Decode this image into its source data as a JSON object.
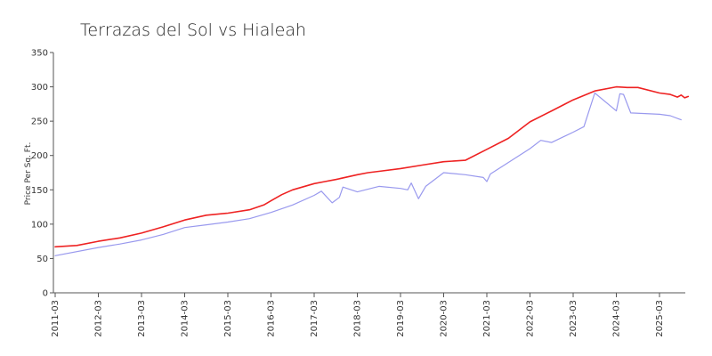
{
  "chart_data": {
    "type": "line",
    "title": "Terrazas del Sol vs Hialeah",
    "xlabel": "",
    "ylabel": "Price Per Sq. Ft.",
    "ylim": [
      0,
      350
    ],
    "yticks": [
      0,
      50,
      100,
      150,
      200,
      250,
      300,
      350
    ],
    "xticks": [
      "2011-03",
      "2012-03",
      "2013-03",
      "2014-03",
      "2015-03",
      "2016-03",
      "2017-03",
      "2018-03",
      "2019-03",
      "2020-03",
      "2021-03",
      "2022-03",
      "2023-03",
      "2024-03",
      "2025-03"
    ],
    "grid": false,
    "legend": "none",
    "series": [
      {
        "color": "#ee2222",
        "x": [
          "2011-03",
          "2011-09",
          "2012-03",
          "2012-09",
          "2013-03",
          "2013-09",
          "2014-03",
          "2014-09",
          "2015-03",
          "2015-09",
          "2016-01",
          "2016-03",
          "2016-06",
          "2016-09",
          "2017-03",
          "2017-06",
          "2017-09",
          "2018-03",
          "2018-06",
          "2018-09",
          "2019-03",
          "2019-09",
          "2020-03",
          "2020-09",
          "2021-03",
          "2021-09",
          "2022-03",
          "2022-09",
          "2023-03",
          "2023-09",
          "2024-03",
          "2024-06",
          "2024-09",
          "2025-03",
          "2025-06",
          "2025-08",
          "2025-09",
          "2025-10",
          "2025-11"
        ],
        "values": [
          67,
          69,
          75,
          80,
          87,
          96,
          106,
          113,
          116,
          121,
          128,
          134,
          143,
          150,
          159,
          162,
          165,
          172,
          175,
          177,
          181,
          186,
          191,
          193,
          209,
          225,
          249,
          265,
          281,
          294,
          300,
          299,
          299,
          291,
          289,
          285,
          288,
          284,
          286
        ]
      },
      {
        "color": "#9999ee",
        "x": [
          "2011-03",
          "2012-03",
          "2012-09",
          "2013-03",
          "2013-09",
          "2014-03",
          "2014-09",
          "2015-03",
          "2015-09",
          "2016-03",
          "2016-09",
          "2017-03",
          "2017-05",
          "2017-08",
          "2017-10",
          "2017-11",
          "2018-03",
          "2018-09",
          "2019-03",
          "2019-05",
          "2019-06",
          "2019-08",
          "2019-10",
          "2020-03",
          "2020-09",
          "2021-02",
          "2021-03",
          "2021-04",
          "2022-03",
          "2022-06",
          "2022-09",
          "2023-03",
          "2023-06",
          "2023-09",
          "2024-03",
          "2024-04",
          "2024-05",
          "2024-07",
          "2025-03",
          "2025-06",
          "2025-09"
        ],
        "values": [
          54,
          66,
          71,
          77,
          85,
          95,
          99,
          103,
          108,
          117,
          128,
          142,
          148,
          131,
          139,
          154,
          147,
          155,
          152,
          150,
          160,
          137,
          155,
          175,
          172,
          168,
          162,
          173,
          210,
          222,
          219,
          234,
          242,
          291,
          265,
          290,
          289,
          262,
          260,
          258,
          252
        ]
      }
    ]
  }
}
